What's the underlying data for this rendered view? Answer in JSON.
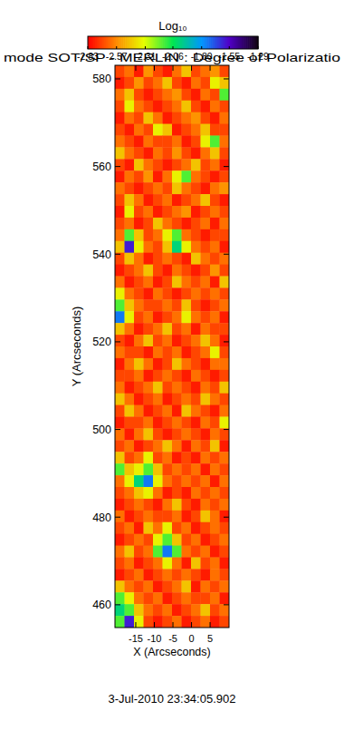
{
  "chart_data": {
    "type": "heatmap",
    "title": "mode SOT/SP - MERLIN : Degree of Polarizatio",
    "xlabel": "X (Arcseconds)",
    "ylabel": "Y (Arcseconds)",
    "annotation": "3-Jul-2010 23:34:05.902",
    "xlim": [
      -20.6,
      10.1
    ],
    "xticks": [
      -15,
      -10,
      -5,
      0,
      5
    ],
    "ylim": [
      454.8,
      583.1
    ],
    "yticks": [
      460,
      480,
      500,
      520,
      540,
      560,
      580
    ],
    "colorbar": {
      "label": "Log₁₀",
      "range": [
        -2.83,
        -1.29
      ],
      "ticks": [
        -2.83,
        -2.57,
        -2.31,
        -2.06,
        {
          "value": -1.8,
          "label": "-1.80"
        },
        -1.55,
        -1.29
      ]
    },
    "z": [
      [
        -2.7,
        -2.62,
        -2.78,
        -2.55,
        -2.7,
        -2.78,
        -2.62,
        -2.45,
        -2.7,
        -2.62,
        -2.55,
        -2.7
      ],
      [
        -2.78,
        -2.7,
        -2.55,
        -2.7,
        -2.62,
        -2.45,
        -2.7,
        -2.78,
        -2.62,
        -2.7,
        -2.35,
        -2.45
      ],
      [
        -2.62,
        -2.45,
        -2.7,
        -2.78,
        -2.7,
        -2.62,
        -2.55,
        -2.7,
        -2.78,
        -2.62,
        -2.7,
        -2.15
      ],
      [
        -2.7,
        -2.35,
        -2.62,
        -2.7,
        -2.78,
        -2.7,
        -2.62,
        -2.45,
        -2.7,
        -2.78,
        -2.62,
        -2.7
      ],
      [
        -2.78,
        -2.62,
        -2.7,
        -2.45,
        -2.62,
        -2.78,
        -2.7,
        -2.62,
        -2.55,
        -2.7,
        -2.78,
        -2.62
      ],
      [
        -2.7,
        -2.78,
        -2.62,
        -2.7,
        -2.35,
        -2.45,
        -2.78,
        -2.7,
        -2.62,
        -2.45,
        -2.7,
        -2.7
      ],
      [
        -2.62,
        -2.7,
        -2.78,
        -2.62,
        -2.7,
        -2.7,
        -2.62,
        -2.78,
        -2.7,
        -2.35,
        -2.15,
        -2.62
      ],
      [
        -2.45,
        -2.62,
        -2.7,
        -2.78,
        -2.62,
        -2.7,
        -2.55,
        -2.7,
        -2.78,
        -2.62,
        -2.45,
        -2.7
      ],
      [
        -2.7,
        -2.78,
        -2.45,
        -2.62,
        -2.7,
        -2.78,
        -2.7,
        -2.62,
        -2.45,
        -2.7,
        -2.62,
        -2.78
      ],
      [
        -2.78,
        -2.62,
        -2.7,
        -2.55,
        -2.78,
        -2.62,
        -2.35,
        -2.15,
        -2.62,
        -2.7,
        -2.78,
        -2.7
      ],
      [
        -2.62,
        -2.7,
        -2.78,
        -2.7,
        -2.62,
        -2.7,
        -2.45,
        -2.62,
        -2.7,
        -2.78,
        -2.62,
        -2.55
      ],
      [
        -2.7,
        -2.45,
        -2.62,
        -2.78,
        -2.7,
        -2.62,
        -2.78,
        -2.7,
        -2.62,
        -2.45,
        -2.7,
        -2.78
      ],
      [
        -2.78,
        -2.35,
        -2.7,
        -2.62,
        -2.78,
        -2.7,
        -2.62,
        -2.55,
        -2.78,
        -2.7,
        -2.62,
        -2.7
      ],
      [
        -2.7,
        -2.62,
        -2.78,
        -2.7,
        -2.45,
        -2.62,
        -2.7,
        -2.78,
        -2.7,
        -2.62,
        -2.78,
        -2.62
      ],
      [
        -2.62,
        -2.15,
        -2.45,
        -2.7,
        -2.62,
        -2.35,
        -2.15,
        -2.62,
        -2.7,
        -2.78,
        -2.7,
        -2.7
      ],
      [
        -2.45,
        -1.6,
        -2.35,
        -2.62,
        -2.7,
        -2.45,
        -2.0,
        -2.35,
        -2.62,
        -2.7,
        -2.62,
        -2.78
      ],
      [
        -2.7,
        -2.45,
        -2.62,
        -2.78,
        -2.7,
        -2.62,
        -2.7,
        -2.78,
        -2.45,
        -2.62,
        -2.7,
        -2.62
      ],
      [
        -2.78,
        -2.7,
        -2.62,
        -2.45,
        -2.7,
        -2.78,
        -2.62,
        -2.7,
        -2.78,
        -2.7,
        -2.55,
        -2.7
      ],
      [
        -2.62,
        -2.78,
        -2.7,
        -2.62,
        -2.78,
        -2.7,
        -2.45,
        -2.62,
        -2.7,
        -2.62,
        -2.78,
        -2.45
      ],
      [
        -2.35,
        -2.62,
        -2.7,
        -2.78,
        -2.62,
        -2.7,
        -2.78,
        -2.7,
        -2.62,
        -2.7,
        -2.62,
        -2.7
      ],
      [
        -2.15,
        -2.45,
        -2.62,
        -2.7,
        -2.7,
        -2.62,
        -2.7,
        -2.45,
        -2.7,
        -2.78,
        -2.7,
        -2.62
      ],
      [
        -1.75,
        -2.35,
        -2.7,
        -2.62,
        -2.78,
        -2.7,
        -2.62,
        -2.35,
        -2.62,
        -2.7,
        -2.62,
        -2.78
      ],
      [
        -2.45,
        -2.62,
        -2.78,
        -2.7,
        -2.62,
        -2.45,
        -2.7,
        -2.62,
        -2.78,
        -2.62,
        -2.7,
        -2.7
      ],
      [
        -2.7,
        -2.78,
        -2.62,
        -2.45,
        -2.7,
        -2.62,
        -2.78,
        -2.7,
        -2.62,
        -2.45,
        -2.62,
        -2.78
      ],
      [
        -2.62,
        -2.7,
        -2.7,
        -2.78,
        -2.62,
        -2.7,
        -2.62,
        -2.78,
        -2.7,
        -2.62,
        -2.35,
        -2.7
      ],
      [
        -2.78,
        -2.62,
        -2.45,
        -2.62,
        -2.78,
        -2.7,
        -2.45,
        -2.62,
        -2.7,
        -2.78,
        -2.62,
        -2.62
      ],
      [
        -2.7,
        -2.7,
        -2.62,
        -2.78,
        -2.7,
        -2.62,
        -2.7,
        -2.78,
        -2.62,
        -2.7,
        -2.78,
        -2.7
      ],
      [
        -2.62,
        -2.78,
        -2.7,
        -2.62,
        -2.45,
        -2.7,
        -2.62,
        -2.7,
        -2.78,
        -2.62,
        -2.7,
        -2.45
      ],
      [
        -2.45,
        -2.62,
        -2.78,
        -2.7,
        -2.62,
        -2.78,
        -2.7,
        -2.62,
        -2.7,
        -2.45,
        -2.62,
        -2.7
      ],
      [
        -2.7,
        -2.45,
        -2.62,
        -2.78,
        -2.7,
        -2.62,
        -2.78,
        -2.45,
        -2.62,
        -2.7,
        -2.78,
        -2.62
      ],
      [
        -2.78,
        -2.7,
        -2.7,
        -2.62,
        -2.78,
        -2.7,
        -2.62,
        -2.7,
        -2.78,
        -2.62,
        -2.7,
        -2.35
      ],
      [
        -2.62,
        -2.78,
        -2.62,
        -2.45,
        -2.7,
        -2.78,
        -2.7,
        -2.62,
        -2.7,
        -2.78,
        -2.62,
        -2.7
      ],
      [
        -2.7,
        -2.62,
        -2.78,
        -2.7,
        -2.62,
        -2.45,
        -2.62,
        -2.78,
        -2.62,
        -2.7,
        -2.45,
        -2.78
      ],
      [
        -2.45,
        -2.7,
        -2.62,
        -2.35,
        -2.7,
        -2.62,
        -2.78,
        -2.7,
        -2.78,
        -2.62,
        -2.7,
        -2.62
      ],
      [
        -2.15,
        -2.45,
        -2.35,
        -2.15,
        -2.45,
        -2.7,
        -2.62,
        -2.7,
        -2.62,
        -2.78,
        -2.62,
        -2.7
      ],
      [
        -2.62,
        -2.35,
        -2.0,
        -1.75,
        -2.35,
        -2.62,
        -2.7,
        -2.62,
        -2.7,
        -2.62,
        -2.78,
        -2.62
      ],
      [
        -2.7,
        -2.62,
        -2.45,
        -2.35,
        -2.62,
        -2.78,
        -2.7,
        -2.78,
        -2.62,
        -2.7,
        -2.62,
        -2.7
      ],
      [
        -2.78,
        -2.7,
        -2.62,
        -2.7,
        -2.78,
        -2.62,
        -2.45,
        -2.7,
        -2.78,
        -2.62,
        -2.7,
        -2.62
      ],
      [
        -2.62,
        -2.78,
        -2.7,
        -2.62,
        -2.7,
        -2.7,
        -2.62,
        -2.78,
        -2.7,
        -2.45,
        -2.62,
        -2.78
      ],
      [
        -2.7,
        -2.62,
        -2.78,
        -2.45,
        -2.62,
        -2.35,
        -2.7,
        -2.62,
        -2.78,
        -2.7,
        -2.62,
        -2.7
      ],
      [
        -2.78,
        -2.7,
        -2.62,
        -2.7,
        -2.35,
        -2.15,
        -2.45,
        -2.7,
        -2.62,
        -2.78,
        -2.7,
        -2.62
      ],
      [
        -2.62,
        -2.45,
        -2.7,
        -2.62,
        -2.15,
        -1.75,
        -2.15,
        -2.62,
        -2.7,
        -2.62,
        -2.78,
        -2.7
      ],
      [
        -2.7,
        -2.62,
        -2.78,
        -2.7,
        -2.62,
        -2.35,
        -2.62,
        -2.78,
        -2.45,
        -2.7,
        -2.62,
        -2.78
      ],
      [
        -2.78,
        -2.7,
        -2.62,
        -2.78,
        -2.7,
        -2.62,
        -2.7,
        -2.62,
        -2.7,
        -2.78,
        -2.62,
        -2.7
      ],
      [
        -2.45,
        -2.62,
        -2.7,
        -2.62,
        -2.78,
        -2.7,
        -2.62,
        -2.45,
        -2.78,
        -2.62,
        -2.7,
        -2.62
      ],
      [
        -2.15,
        -2.35,
        -2.62,
        -2.7,
        -2.62,
        -2.78,
        -2.7,
        -2.62,
        -2.7,
        -2.7,
        -2.62,
        -2.78
      ],
      [
        -2.0,
        -2.15,
        -2.45,
        -2.62,
        -2.7,
        -2.62,
        -2.78,
        -2.7,
        -2.62,
        -2.45,
        -2.7,
        -2.62
      ],
      [
        -2.15,
        -1.6,
        -2.35,
        -2.7,
        -2.78,
        -2.7,
        -2.62,
        -2.78,
        -2.7,
        -2.62,
        -2.78,
        -2.7
      ]
    ]
  }
}
